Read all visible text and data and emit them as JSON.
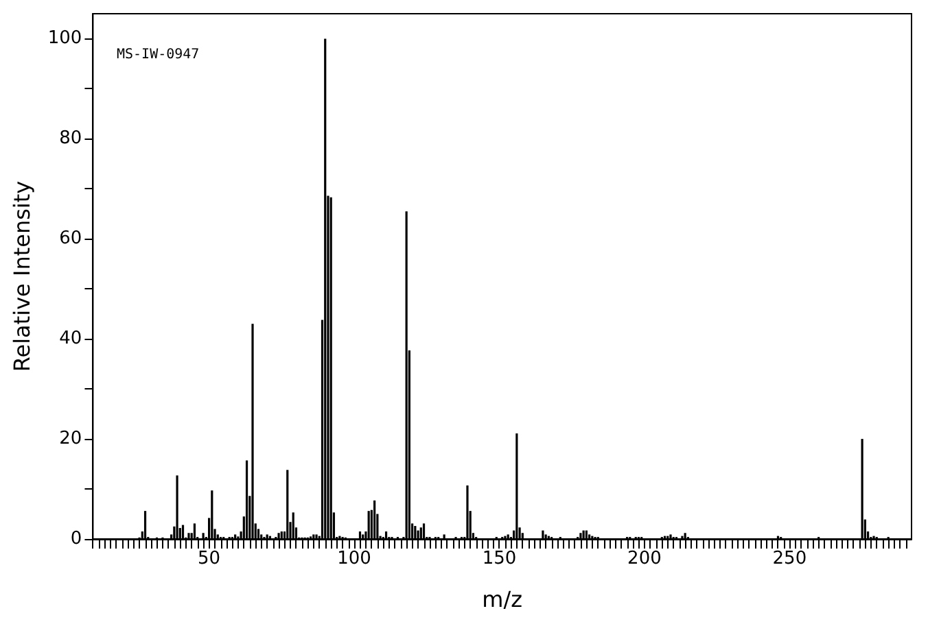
{
  "chart_data": {
    "type": "bar",
    "xlabel": "m/z",
    "ylabel": "Relative Intensity",
    "annotations": [
      "MS-IW-0947"
    ],
    "xlim": [
      10,
      292
    ],
    "ylim": [
      0,
      105
    ],
    "yticks": [
      0,
      {
        "value": 10,
        "label": null
      },
      20,
      {
        "value": 30,
        "label": null
      },
      40,
      {
        "value": 50,
        "label": null
      },
      60,
      {
        "value": 70,
        "label": null
      },
      80,
      {
        "value": 90,
        "label": null
      },
      100
    ],
    "xticks": [
      {
        "value": 10,
        "label": null
      },
      {
        "value": 12,
        "label": null
      },
      {
        "value": 14,
        "label": null
      },
      {
        "value": 16,
        "label": null
      },
      {
        "value": 18,
        "label": null
      },
      {
        "value": 20,
        "label": null
      },
      {
        "value": 22,
        "label": null
      },
      {
        "value": 24,
        "label": null
      },
      {
        "value": 26,
        "label": null
      },
      {
        "value": 28,
        "label": null
      },
      {
        "value": 30,
        "label": null
      },
      {
        "value": 32,
        "label": null
      },
      {
        "value": 34,
        "label": null
      },
      {
        "value": 36,
        "label": null
      },
      {
        "value": 38,
        "label": null
      },
      {
        "value": 40,
        "label": null
      },
      {
        "value": 42,
        "label": null
      },
      {
        "value": 44,
        "label": null
      },
      {
        "value": 46,
        "label": null
      },
      {
        "value": 48,
        "label": null
      },
      50,
      {
        "value": 52,
        "label": null
      },
      {
        "value": 54,
        "label": null
      },
      {
        "value": 56,
        "label": null
      },
      {
        "value": 58,
        "label": null
      },
      {
        "value": 60,
        "label": null
      },
      {
        "value": 62,
        "label": null
      },
      {
        "value": 64,
        "label": null
      },
      {
        "value": 66,
        "label": null
      },
      {
        "value": 68,
        "label": null
      },
      {
        "value": 70,
        "label": null
      },
      {
        "value": 72,
        "label": null
      },
      {
        "value": 74,
        "label": null
      },
      {
        "value": 76,
        "label": null
      },
      {
        "value": 78,
        "label": null
      },
      {
        "value": 80,
        "label": null
      },
      {
        "value": 82,
        "label": null
      },
      {
        "value": 84,
        "label": null
      },
      {
        "value": 86,
        "label": null
      },
      {
        "value": 88,
        "label": null
      },
      {
        "value": 90,
        "label": null
      },
      {
        "value": 92,
        "label": null
      },
      {
        "value": 94,
        "label": null
      },
      {
        "value": 96,
        "label": null
      },
      {
        "value": 98,
        "label": null
      },
      100,
      {
        "value": 102,
        "label": null
      },
      {
        "value": 104,
        "label": null
      },
      {
        "value": 106,
        "label": null
      },
      {
        "value": 108,
        "label": null
      },
      {
        "value": 110,
        "label": null
      },
      {
        "value": 112,
        "label": null
      },
      {
        "value": 114,
        "label": null
      },
      {
        "value": 116,
        "label": null
      },
      {
        "value": 118,
        "label": null
      },
      {
        "value": 120,
        "label": null
      },
      {
        "value": 122,
        "label": null
      },
      {
        "value": 124,
        "label": null
      },
      {
        "value": 126,
        "label": null
      },
      {
        "value": 128,
        "label": null
      },
      {
        "value": 130,
        "label": null
      },
      {
        "value": 132,
        "label": null
      },
      {
        "value": 134,
        "label": null
      },
      {
        "value": 136,
        "label": null
      },
      {
        "value": 138,
        "label": null
      },
      {
        "value": 140,
        "label": null
      },
      {
        "value": 142,
        "label": null
      },
      {
        "value": 144,
        "label": null
      },
      {
        "value": 146,
        "label": null
      },
      {
        "value": 148,
        "label": null
      },
      150,
      {
        "value": 152,
        "label": null
      },
      {
        "value": 154,
        "label": null
      },
      {
        "value": 156,
        "label": null
      },
      {
        "value": 158,
        "label": null
      },
      {
        "value": 160,
        "label": null
      },
      {
        "value": 162,
        "label": null
      },
      {
        "value": 164,
        "label": null
      },
      {
        "value": 166,
        "label": null
      },
      {
        "value": 168,
        "label": null
      },
      {
        "value": 170,
        "label": null
      },
      {
        "value": 172,
        "label": null
      },
      {
        "value": 174,
        "label": null
      },
      {
        "value": 176,
        "label": null
      },
      {
        "value": 178,
        "label": null
      },
      {
        "value": 180,
        "label": null
      },
      {
        "value": 182,
        "label": null
      },
      {
        "value": 184,
        "label": null
      },
      {
        "value": 186,
        "label": null
      },
      {
        "value": 188,
        "label": null
      },
      {
        "value": 190,
        "label": null
      },
      {
        "value": 192,
        "label": null
      },
      {
        "value": 194,
        "label": null
      },
      {
        "value": 196,
        "label": null
      },
      {
        "value": 198,
        "label": null
      },
      200,
      {
        "value": 202,
        "label": null
      },
      {
        "value": 204,
        "label": null
      },
      {
        "value": 206,
        "label": null
      },
      {
        "value": 208,
        "label": null
      },
      {
        "value": 210,
        "label": null
      },
      {
        "value": 212,
        "label": null
      },
      {
        "value": 214,
        "label": null
      },
      {
        "value": 216,
        "label": null
      },
      {
        "value": 218,
        "label": null
      },
      {
        "value": 220,
        "label": null
      },
      {
        "value": 222,
        "label": null
      },
      {
        "value": 224,
        "label": null
      },
      {
        "value": 226,
        "label": null
      },
      {
        "value": 228,
        "label": null
      },
      {
        "value": 230,
        "label": null
      },
      {
        "value": 232,
        "label": null
      },
      {
        "value": 234,
        "label": null
      },
      {
        "value": 236,
        "label": null
      },
      {
        "value": 238,
        "label": null
      },
      {
        "value": 240,
        "label": null
      },
      {
        "value": 242,
        "label": null
      },
      {
        "value": 244,
        "label": null
      },
      {
        "value": 246,
        "label": null
      },
      {
        "value": 248,
        "label": null
      },
      250,
      {
        "value": 252,
        "label": null
      },
      {
        "value": 254,
        "label": null
      },
      {
        "value": 256,
        "label": null
      },
      {
        "value": 258,
        "label": null
      },
      {
        "value": 260,
        "label": null
      },
      {
        "value": 262,
        "label": null
      },
      {
        "value": 264,
        "label": null
      },
      {
        "value": 266,
        "label": null
      },
      {
        "value": 268,
        "label": null
      },
      {
        "value": 270,
        "label": null
      },
      {
        "value": 272,
        "label": null
      },
      {
        "value": 274,
        "label": null
      },
      {
        "value": 276,
        "label": null
      },
      {
        "value": 278,
        "label": null
      },
      {
        "value": 280,
        "label": null
      },
      {
        "value": 282,
        "label": null
      },
      {
        "value": 284,
        "label": null
      },
      {
        "value": 286,
        "label": null
      },
      {
        "value": 288,
        "label": null
      },
      {
        "value": 290,
        "label": null
      }
    ],
    "series": [
      {
        "color": "#000000",
        "x": [
          26,
          27,
          28,
          29,
          32,
          34,
          37,
          38,
          39,
          40,
          41,
          42,
          43,
          44,
          45,
          46,
          48,
          49,
          50,
          51,
          52,
          53,
          54,
          55,
          57,
          58,
          59,
          60,
          61,
          62,
          63,
          64,
          65,
          66,
          67,
          68,
          69,
          70,
          71,
          73,
          74,
          75,
          76,
          77,
          78,
          79,
          80,
          81,
          82,
          83,
          84,
          85,
          86,
          87,
          88,
          89,
          90,
          91,
          92,
          93,
          94,
          95,
          96,
          97,
          102,
          103,
          104,
          105,
          106,
          107,
          108,
          109,
          110,
          111,
          112,
          113,
          115,
          117,
          118,
          119,
          120,
          121,
          122,
          123,
          124,
          125,
          126,
          128,
          129,
          131,
          135,
          137,
          138,
          139,
          140,
          141,
          142,
          149,
          151,
          152,
          153,
          154,
          155,
          156,
          157,
          158,
          165,
          166,
          167,
          168,
          171,
          177,
          178,
          179,
          180,
          181,
          182,
          183,
          184,
          194,
          195,
          197,
          198,
          199,
          206,
          207,
          208,
          209,
          210,
          211,
          213,
          214,
          215,
          246,
          247,
          260,
          275,
          276,
          277,
          278,
          279,
          280,
          284
        ],
        "values": [
          0.3,
          1.5,
          5.6,
          0.4,
          0.3,
          0.3,
          0.9,
          2.5,
          12.7,
          2.2,
          2.8,
          0.3,
          1.2,
          1.2,
          3.1,
          0.4,
          1.2,
          0.4,
          4.2,
          9.7,
          2.0,
          0.9,
          0.4,
          0.4,
          0.4,
          0.4,
          0.9,
          0.5,
          1.5,
          4.5,
          15.7,
          8.6,
          43,
          3.1,
          2.0,
          0.9,
          0.4,
          0.9,
          0.6,
          0.4,
          1.2,
          1.5,
          1.5,
          13.8,
          3.4,
          5.3,
          2.3,
          0.3,
          0.3,
          0.3,
          0.3,
          0.5,
          0.9,
          0.9,
          0.6,
          43.8,
          100,
          68.6,
          68.3,
          5.3,
          0.4,
          0.6,
          0.4,
          0.3,
          1.5,
          0.9,
          1.5,
          5.6,
          5.8,
          7.7,
          5.0,
          0.6,
          0.4,
          1.5,
          0.4,
          0.4,
          0.4,
          0.4,
          65.5,
          37.7,
          3.1,
          2.6,
          1.7,
          2.3,
          3.1,
          0.4,
          0.4,
          0.4,
          0.4,
          0.9,
          0.4,
          0.4,
          0.4,
          10.7,
          5.6,
          1.2,
          0.4,
          0.4,
          0.4,
          0.6,
          0.9,
          0.4,
          1.7,
          21.1,
          2.3,
          1.2,
          1.7,
          0.9,
          0.6,
          0.4,
          0.4,
          0.4,
          1.2,
          1.7,
          1.7,
          0.9,
          0.6,
          0.4,
          0.4,
          0.4,
          0.4,
          0.4,
          0.4,
          0.4,
          0.4,
          0.6,
          0.6,
          0.9,
          0.4,
          0.4,
          0.6,
          1.2,
          0.4,
          0.6,
          0.4,
          0.4,
          20.0,
          3.9,
          1.5,
          0.4,
          0.6,
          0.4,
          0.4
        ]
      }
    ]
  }
}
